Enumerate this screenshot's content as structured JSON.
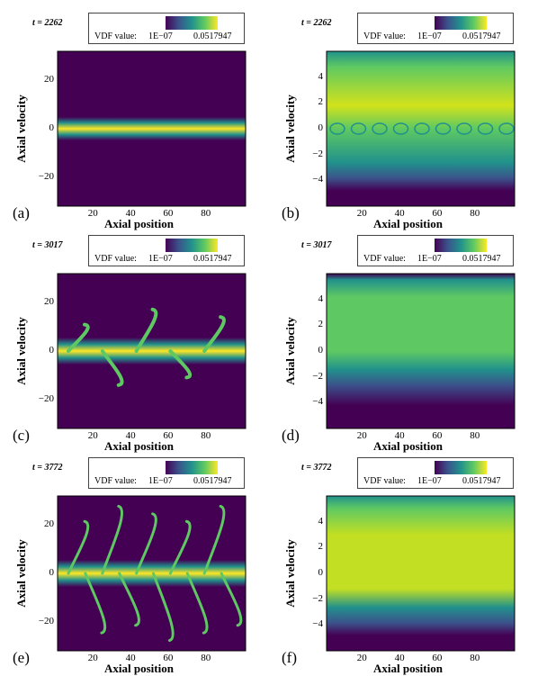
{
  "colormap": [
    "#440154",
    "#3b528b",
    "#21918c",
    "#5ec962",
    "#fde725"
  ],
  "legend": {
    "vdf_label": "VDF value:",
    "min": "1E−07",
    "max": "0.0517947"
  },
  "chart_data": [
    {
      "panel": "(a)",
      "type": "heatmap",
      "time": "t = 2262",
      "xlabel": "Axial position",
      "ylabel": "Axial velocity",
      "xticks": [
        "20",
        "40",
        "60",
        "80"
      ],
      "yticks": [
        "20",
        "0",
        "−20"
      ],
      "xlim": [
        0,
        100
      ],
      "ylim": [
        -32,
        32
      ],
      "colorbar": {
        "min": 1e-07,
        "max": 0.0517947
      }
    },
    {
      "panel": "(b)",
      "type": "heatmap",
      "time": "t = 2262",
      "xlabel": "Axial position",
      "ylabel": "Axial velocity",
      "xticks": [
        "20",
        "40",
        "60",
        "80"
      ],
      "yticks": [
        "4",
        "2",
        "0",
        "−2",
        "−4"
      ],
      "xlim": [
        0,
        100
      ],
      "ylim": [
        -6,
        6
      ],
      "colorbar": {
        "min": 1e-07,
        "max": 0.0517947
      }
    },
    {
      "panel": "(c)",
      "type": "heatmap",
      "time": "t = 3017",
      "xlabel": "Axial position",
      "ylabel": "Axial velocity",
      "xticks": [
        "20",
        "40",
        "60",
        "80"
      ],
      "yticks": [
        "20",
        "0",
        "−20"
      ],
      "xlim": [
        0,
        100
      ],
      "ylim": [
        -32,
        32
      ],
      "colorbar": {
        "min": 1e-07,
        "max": 0.0517947
      }
    },
    {
      "panel": "(d)",
      "type": "heatmap",
      "time": "t = 3017",
      "xlabel": "Axial position",
      "ylabel": "Axial velocity",
      "xticks": [
        "20",
        "40",
        "60",
        "80"
      ],
      "yticks": [
        "4",
        "2",
        "0",
        "−2",
        "−4"
      ],
      "xlim": [
        0,
        100
      ],
      "ylim": [
        -6,
        6
      ],
      "colorbar": {
        "min": 1e-07,
        "max": 0.0517947
      }
    },
    {
      "panel": "(e)",
      "type": "heatmap",
      "time": "t = 3772",
      "xlabel": "Axial position",
      "ylabel": "Axial velocity",
      "xticks": [
        "20",
        "40",
        "60",
        "80"
      ],
      "yticks": [
        "20",
        "0",
        "−20"
      ],
      "xlim": [
        0,
        100
      ],
      "ylim": [
        -32,
        32
      ],
      "colorbar": {
        "min": 1e-07,
        "max": 0.0517947
      }
    },
    {
      "panel": "(f)",
      "type": "heatmap",
      "time": "t = 3772",
      "xlabel": "Axial position",
      "ylabel": "Axial velocity",
      "xticks": [
        "20",
        "40",
        "60",
        "80"
      ],
      "yticks": [
        "4",
        "2",
        "0",
        "−2",
        "−4"
      ],
      "xlim": [
        0,
        100
      ],
      "ylim": [
        -6,
        6
      ],
      "colorbar": {
        "min": 1e-07,
        "max": 0.0517947
      }
    }
  ]
}
